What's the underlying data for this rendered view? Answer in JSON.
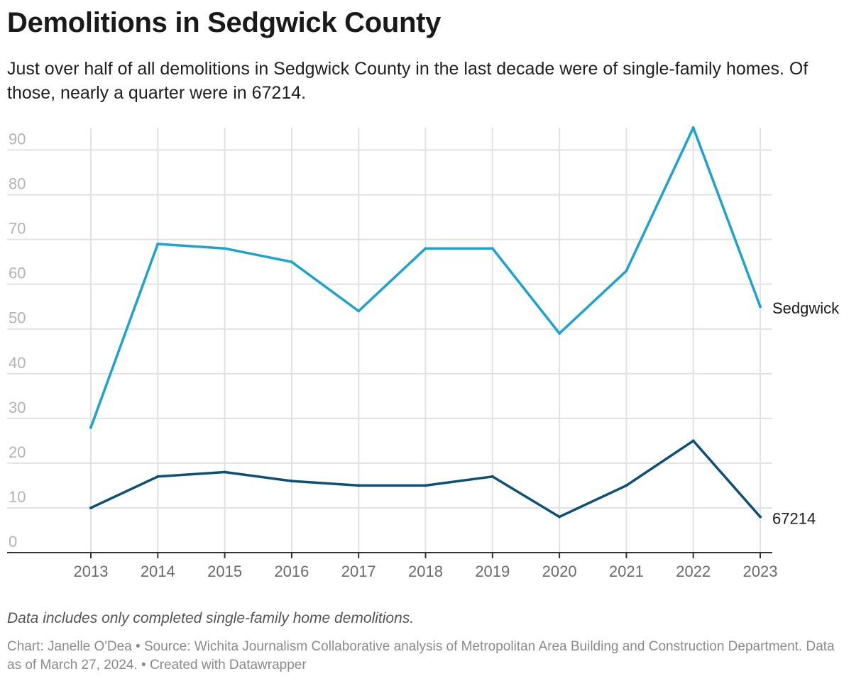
{
  "header": {
    "title": "Demolitions in Sedgwick County",
    "subtitle": "Just over half of all demolitions in Sedgwick County in the last decade were of single-family homes. Of those, nearly a quarter were in 67214."
  },
  "footer": {
    "note": "Data includes only completed single-family home demolitions.",
    "source": "Chart: Janelle O'Dea • Source: Wichita Journalism Collaborative analysis of Metropolitan Area Building and Construction Department. Data as of March 27, 2024. • Created with Datawrapper"
  },
  "chart_data": {
    "type": "line",
    "title": "Demolitions in Sedgwick County",
    "xlabel": "",
    "ylabel": "",
    "x": [
      "2013",
      "2014",
      "2015",
      "2016",
      "2017",
      "2018",
      "2019",
      "2020",
      "2021",
      "2022",
      "2023"
    ],
    "ylim": [
      0,
      95
    ],
    "yticks": [
      0,
      10,
      20,
      30,
      40,
      50,
      60,
      70,
      80,
      90
    ],
    "grid": true,
    "legend": "direct labels at right end of lines",
    "series": [
      {
        "name": "Sedgwick",
        "color": "#1ba3d1",
        "values": [
          28,
          69,
          68,
          65,
          54,
          68,
          68,
          49,
          63,
          95,
          55
        ]
      },
      {
        "name": "67214",
        "color": "#0b5075",
        "values": [
          10,
          17,
          18,
          16,
          15,
          15,
          17,
          8,
          15,
          25,
          8
        ]
      }
    ]
  }
}
